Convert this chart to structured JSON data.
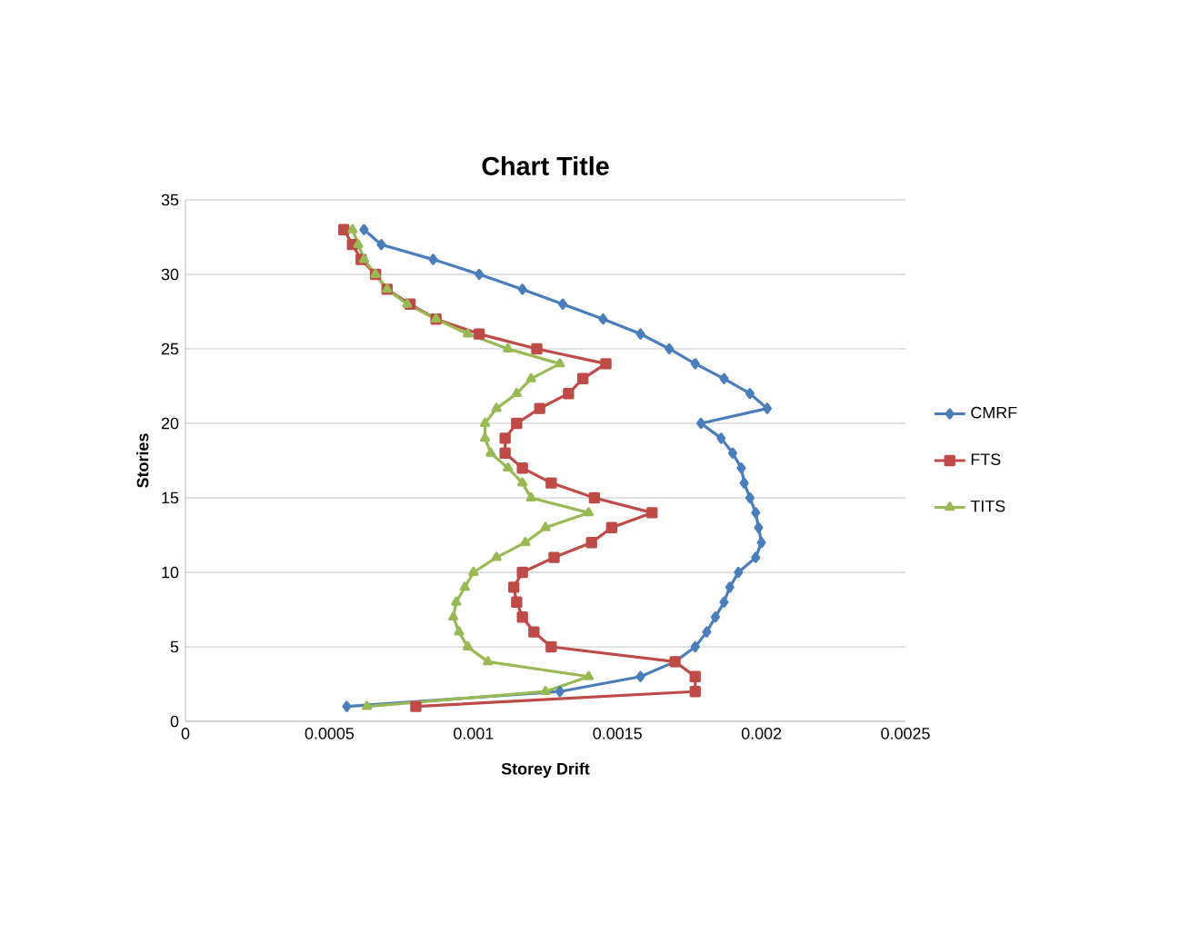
{
  "chart_data": {
    "type": "line",
    "title": "Chart Title",
    "xlabel": "Storey Drift",
    "ylabel": "Stories",
    "xlim": [
      0,
      0.0025
    ],
    "xticks": [
      0,
      0.0005,
      0.001,
      0.0015,
      0.002,
      0.0025
    ],
    "ylim": [
      0,
      35
    ],
    "yticks": [
      0,
      5,
      10,
      15,
      20,
      25,
      30,
      35
    ],
    "grid": "y",
    "legend": "right",
    "series": [
      {
        "name": "CMRF",
        "color": "#4a7ebb",
        "marker": "diamond",
        "x": [
          0.00056,
          0.0013,
          0.00158,
          0.0017,
          0.00177,
          0.00181,
          0.00184,
          0.00187,
          0.00189,
          0.00192,
          0.00198,
          0.002,
          0.00199,
          0.00198,
          0.00196,
          0.00194,
          0.00193,
          0.0019,
          0.00186,
          0.00179,
          0.00202,
          0.00196,
          0.00187,
          0.00177,
          0.00168,
          0.00158,
          0.00145,
          0.00131,
          0.00117,
          0.00102,
          0.00086,
          0.00068,
          0.00062
        ],
        "values": [
          1,
          2,
          3,
          4,
          5,
          6,
          7,
          8,
          9,
          10,
          11,
          12,
          13,
          14,
          15,
          16,
          17,
          18,
          19,
          20,
          21,
          22,
          23,
          24,
          25,
          26,
          27,
          28,
          29,
          30,
          31,
          32,
          33
        ]
      },
      {
        "name": "FTS",
        "color": "#be4b48",
        "marker": "square",
        "x": [
          0.0008,
          0.00177,
          0.00177,
          0.0017,
          0.00127,
          0.00121,
          0.00117,
          0.00115,
          0.00114,
          0.00117,
          0.00128,
          0.00141,
          0.00148,
          0.00162,
          0.00142,
          0.00127,
          0.00117,
          0.00111,
          0.00111,
          0.00115,
          0.00123,
          0.00133,
          0.00138,
          0.00146,
          0.00122,
          0.00102,
          0.00087,
          0.00078,
          0.0007,
          0.00066,
          0.00061,
          0.00058,
          0.00055
        ],
        "values": [
          1,
          2,
          3,
          4,
          5,
          6,
          7,
          8,
          9,
          10,
          11,
          12,
          13,
          14,
          15,
          16,
          17,
          18,
          19,
          20,
          21,
          22,
          23,
          24,
          25,
          26,
          27,
          28,
          29,
          30,
          31,
          32,
          33
        ]
      },
      {
        "name": "TITS",
        "color": "#98b954",
        "marker": "triangle",
        "x": [
          0.00063,
          0.00125,
          0.0014,
          0.00105,
          0.00098,
          0.00095,
          0.00093,
          0.00094,
          0.00097,
          0.001,
          0.00108,
          0.00118,
          0.00125,
          0.0014,
          0.0012,
          0.00117,
          0.00112,
          0.00106,
          0.00104,
          0.00104,
          0.00108,
          0.00115,
          0.0012,
          0.0013,
          0.00112,
          0.00098,
          0.00087,
          0.00077,
          0.0007,
          0.00066,
          0.00062,
          0.0006,
          0.00058
        ],
        "values": [
          1,
          2,
          3,
          4,
          5,
          6,
          7,
          8,
          9,
          10,
          11,
          12,
          13,
          14,
          15,
          16,
          17,
          18,
          19,
          20,
          21,
          22,
          23,
          24,
          25,
          26,
          27,
          28,
          29,
          30,
          31,
          32,
          33
        ]
      }
    ]
  }
}
